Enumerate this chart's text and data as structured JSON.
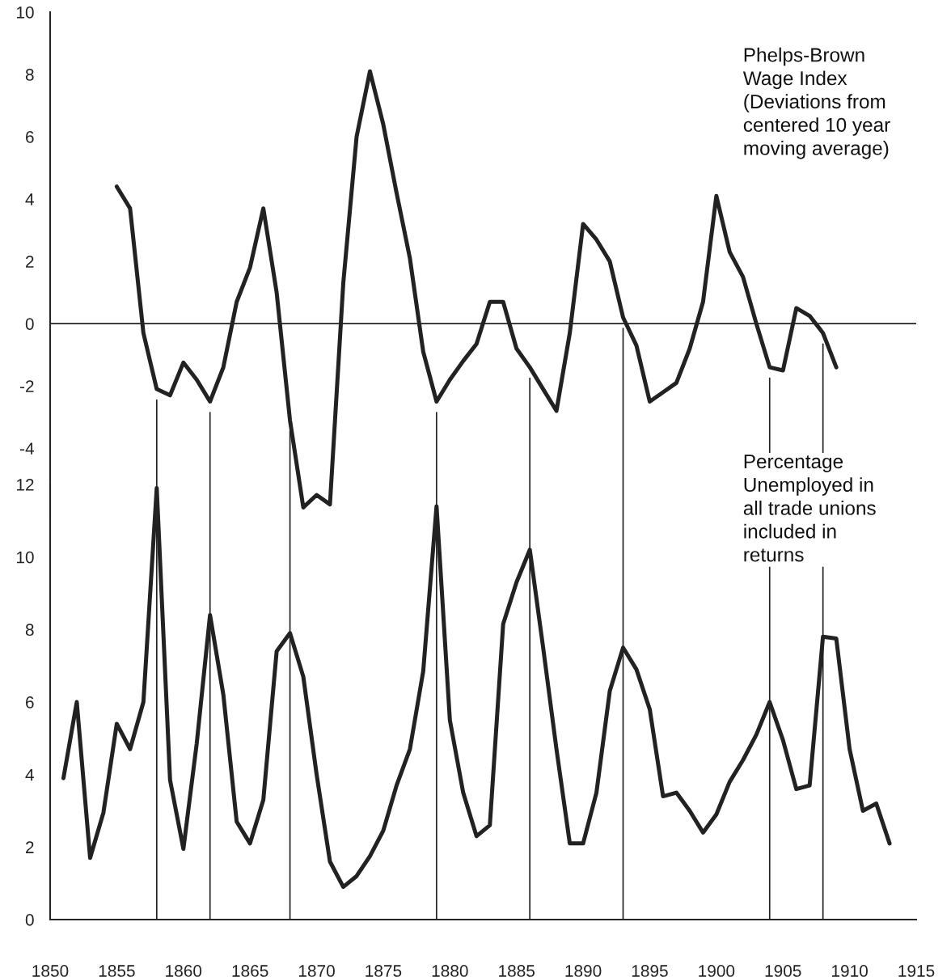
{
  "chart_data": [
    {
      "type": "line",
      "x": [
        1855,
        1856,
        1857,
        1858,
        1859,
        1860,
        1861,
        1862,
        1863,
        1864,
        1865,
        1866,
        1867,
        1868,
        1869,
        1870,
        1871,
        1872,
        1873,
        1874,
        1875,
        1876,
        1877,
        1878,
        1879,
        1880,
        1881,
        1882,
        1883,
        1884,
        1885,
        1886,
        1887,
        1888,
        1889,
        1890,
        1891,
        1892,
        1893,
        1894,
        1895,
        1896,
        1897,
        1898,
        1899,
        1900,
        1901,
        1902,
        1903,
        1904,
        1905,
        1906,
        1907,
        1908,
        1909
      ],
      "series": [
        {
          "color": "#222222",
          "values": [
            4.4,
            3.7,
            -0.3,
            -2.1,
            -2.3,
            -1.25,
            -1.8,
            -2.5,
            -1.4,
            0.7,
            1.8,
            3.7,
            1.0,
            -3.1,
            -5.9,
            -5.5,
            -5.8,
            1.3,
            6.0,
            8.1,
            6.4,
            4.2,
            2.1,
            -0.9,
            -2.5,
            -1.8,
            -1.2,
            -0.65,
            0.7,
            0.7,
            -0.8,
            -1.4,
            -2.1,
            -2.8,
            -0.3,
            3.2,
            2.7,
            2.0,
            0.2,
            -0.7,
            -2.5,
            -2.2,
            -1.9,
            -0.8,
            0.7,
            4.1,
            2.3,
            1.5,
            0.0,
            -1.4,
            -1.5,
            0.5,
            0.25,
            -0.3,
            -1.4
          ]
        }
      ],
      "xlim": [
        1850,
        1915
      ],
      "ylim": [
        -6.2,
        10
      ],
      "yticks": [
        -4,
        -2,
        0,
        2,
        4,
        6,
        8,
        10
      ],
      "tick_labels": "y",
      "grid": false,
      "legend": false,
      "ref_lines": [
        {
          "axis": "y",
          "value": 0,
          "color": "#222222"
        }
      ],
      "annotations": [
        "Phelps-Brown\nWage Index\n(Deviations from\ncentered 10 year\nmoving average)"
      ]
    },
    {
      "type": "line",
      "x": [
        1851,
        1852,
        1853,
        1854,
        1855,
        1856,
        1857,
        1858,
        1859,
        1860,
        1861,
        1862,
        1863,
        1864,
        1865,
        1866,
        1867,
        1868,
        1869,
        1870,
        1871,
        1872,
        1873,
        1874,
        1875,
        1876,
        1877,
        1878,
        1879,
        1880,
        1881,
        1882,
        1883,
        1884,
        1885,
        1886,
        1887,
        1888,
        1889,
        1890,
        1891,
        1892,
        1893,
        1894,
        1895,
        1896,
        1897,
        1898,
        1899,
        1900,
        1901,
        1902,
        1903,
        1904,
        1905,
        1906,
        1907,
        1908,
        1909,
        1910,
        1911,
        1912,
        1913
      ],
      "series": [
        {
          "color": "#222222",
          "values": [
            3.9,
            6.0,
            1.7,
            2.95,
            5.4,
            4.7,
            6.0,
            11.9,
            3.85,
            1.95,
            4.85,
            8.4,
            6.2,
            2.7,
            2.1,
            3.3,
            7.4,
            7.9,
            6.7,
            4.0,
            1.6,
            0.9,
            1.2,
            1.75,
            2.45,
            3.7,
            4.7,
            6.85,
            11.4,
            5.5,
            3.5,
            2.3,
            2.6,
            8.15,
            9.3,
            10.2,
            7.5,
            4.7,
            2.1,
            2.1,
            3.5,
            6.3,
            7.5,
            6.9,
            5.8,
            3.4,
            3.5,
            3.0,
            2.4,
            2.9,
            3.8,
            4.4,
            5.1,
            6.0,
            4.95,
            3.6,
            3.7,
            7.8,
            7.75,
            4.7,
            3.0,
            3.2,
            2.1
          ]
        }
      ],
      "xlim": [
        1850,
        1915
      ],
      "xticks": [
        1850,
        1855,
        1860,
        1865,
        1870,
        1875,
        1880,
        1885,
        1890,
        1895,
        1900,
        1905,
        1910,
        1915
      ],
      "ylim": [
        0,
        12
      ],
      "yticks": [
        0,
        2,
        4,
        6,
        8,
        10,
        12
      ],
      "grid": false,
      "legend": false,
      "ref_lines": [
        {
          "axis": "x",
          "value": 1858,
          "color": "#222222"
        },
        {
          "axis": "x",
          "value": 1862,
          "color": "#222222"
        },
        {
          "axis": "x",
          "value": 1868,
          "color": "#222222"
        },
        {
          "axis": "x",
          "value": 1879,
          "color": "#222222"
        },
        {
          "axis": "x",
          "value": 1886,
          "color": "#222222"
        },
        {
          "axis": "x",
          "value": 1893,
          "color": "#222222"
        },
        {
          "axis": "x",
          "value": 1904,
          "color": "#222222"
        },
        {
          "axis": "x",
          "value": 1908,
          "color": "#222222"
        }
      ],
      "annotations": [
        "Percentage\nUnemployed in\nall trade unions\nincluded in\nreturns"
      ]
    }
  ]
}
